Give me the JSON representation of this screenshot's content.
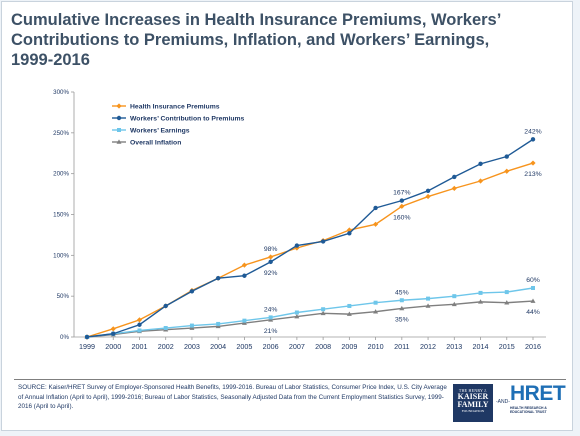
{
  "title": "Cumulative Increases in Health Insurance Premiums, Workers’\nContributions to Premiums, Inflation, and Workers’ Earnings,\n1999-2016",
  "source": "SOURCE:  Kaiser/HRET Survey of Employer-Sponsored Health Benefits, 1999-2016.  Bureau of Labor Statistics, Consumer Price Index, U.S. City Average of Annual Inflation (April to April), 1999-2016; Bureau of Labor Statistics, Seasonally Adjusted Data from the Current Employment Statistics Survey, 1999-2016 (April to April).",
  "logos": {
    "kff": [
      "THE HENRY J.",
      "KAISER",
      "FAMILY",
      "FOUNDATION"
    ],
    "and": "-AND-",
    "hret": "HRET",
    "hret_tag": "HEALTH RESEARCH & EDUCATIONAL TRUST"
  },
  "colors": {
    "premiums": "#f7941d",
    "contribution": "#1f5a96",
    "earnings": "#6ec6ea",
    "inflation": "#7f7f7f",
    "axis": "#9a9a9a"
  },
  "chart_data": {
    "type": "line",
    "title": "Cumulative Increases in Health Insurance Premiums, Workers’ Contributions to Premiums, Inflation, and Workers’ Earnings, 1999-2016",
    "xlabel": "",
    "ylabel": "",
    "x": [
      "1999",
      "2000",
      "2001",
      "2002",
      "2003",
      "2004",
      "2005",
      "2006",
      "2007",
      "2008",
      "2009",
      "2010",
      "2011",
      "2012",
      "2013",
      "2014",
      "2015",
      "2016"
    ],
    "ylim": [
      0,
      300
    ],
    "yticks": [
      0,
      50,
      100,
      150,
      200,
      250,
      300
    ],
    "ytick_labels": [
      "0%",
      "50%",
      "100%",
      "150%",
      "200%",
      "250%",
      "300%"
    ],
    "grid": false,
    "legend_position": "top-left",
    "series": [
      {
        "key": "premiums",
        "name": "Health Insurance Premiums",
        "marker": "diamond",
        "values": [
          0,
          10,
          21,
          38,
          57,
          72,
          88,
          98,
          109,
          118,
          131,
          138,
          160,
          172,
          182,
          191,
          203,
          213
        ]
      },
      {
        "key": "contribution",
        "name": "Workers’ Contribution to Premiums",
        "marker": "circle",
        "values": [
          0,
          4,
          15,
          38,
          56,
          72,
          75,
          92,
          112,
          117,
          127,
          158,
          167,
          179,
          196,
          212,
          221,
          242
        ]
      },
      {
        "key": "earnings",
        "name": "Workers’ Earnings",
        "marker": "square",
        "values": [
          0,
          4,
          8,
          11,
          14,
          16,
          20,
          24,
          30,
          34,
          38,
          42,
          45,
          47,
          50,
          54,
          55,
          60
        ]
      },
      {
        "key": "inflation",
        "name": "Overall Inflation",
        "marker": "triangle",
        "values": [
          0,
          3,
          7,
          9,
          11,
          13,
          17,
          21,
          25,
          29,
          28,
          31,
          35,
          38,
          40,
          43,
          42,
          44
        ]
      }
    ],
    "annotations": [
      {
        "series": "premiums",
        "x": "2006",
        "text": "98%",
        "pos": "above"
      },
      {
        "series": "contribution",
        "x": "2006",
        "text": "92%",
        "pos": "below"
      },
      {
        "series": "contribution",
        "x": "2011",
        "text": "167%",
        "pos": "above"
      },
      {
        "series": "premiums",
        "x": "2011",
        "text": "160%",
        "pos": "below"
      },
      {
        "series": "contribution",
        "x": "2016",
        "text": "242%",
        "pos": "above"
      },
      {
        "series": "premiums",
        "x": "2016",
        "text": "213%",
        "pos": "below"
      },
      {
        "series": "earnings",
        "x": "2006",
        "text": "24%",
        "pos": "above"
      },
      {
        "series": "inflation",
        "x": "2006",
        "text": "21%",
        "pos": "below"
      },
      {
        "series": "earnings",
        "x": "2011",
        "text": "45%",
        "pos": "above"
      },
      {
        "series": "inflation",
        "x": "2011",
        "text": "35%",
        "pos": "below"
      },
      {
        "series": "earnings",
        "x": "2016",
        "text": "60%",
        "pos": "above"
      },
      {
        "series": "inflation",
        "x": "2016",
        "text": "44%",
        "pos": "below"
      }
    ]
  }
}
